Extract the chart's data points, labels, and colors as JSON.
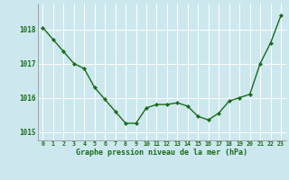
{
  "x": [
    0,
    1,
    2,
    3,
    4,
    5,
    6,
    7,
    8,
    9,
    10,
    11,
    12,
    13,
    14,
    15,
    16,
    17,
    18,
    19,
    20,
    21,
    22,
    23
  ],
  "y": [
    1018.05,
    1017.7,
    1017.35,
    1017.0,
    1016.85,
    1016.3,
    1015.95,
    1015.6,
    1015.25,
    1015.25,
    1015.7,
    1015.8,
    1015.8,
    1015.85,
    1015.75,
    1015.45,
    1015.35,
    1015.55,
    1015.9,
    1016.0,
    1016.1,
    1017.0,
    1017.6,
    1018.4
  ],
  "line_color": "#1a6b1a",
  "marker": "D",
  "marker_size": 2.2,
  "bg_color": "#cce8ee",
  "grid_color": "#ffffff",
  "xlabel": "Graphe pression niveau de la mer (hPa)",
  "xlabel_color": "#1a6b1a",
  "tick_color": "#1a6b1a",
  "ylim": [
    1014.75,
    1018.75
  ],
  "yticks": [
    1015,
    1016,
    1017,
    1018
  ],
  "xticks": [
    0,
    1,
    2,
    3,
    4,
    5,
    6,
    7,
    8,
    9,
    10,
    11,
    12,
    13,
    14,
    15,
    16,
    17,
    18,
    19,
    20,
    21,
    22,
    23
  ],
  "xtick_labels": [
    "0",
    "1",
    "2",
    "3",
    "4",
    "5",
    "6",
    "7",
    "8",
    "9",
    "10",
    "11",
    "12",
    "13",
    "14",
    "15",
    "16",
    "17",
    "18",
    "19",
    "20",
    "21",
    "22",
    "23"
  ]
}
